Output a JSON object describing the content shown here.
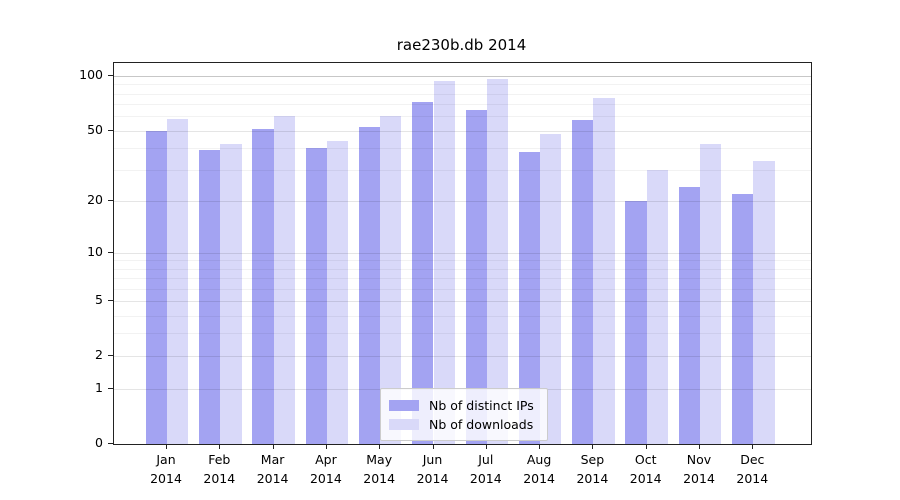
{
  "title": "rae230b.db 2014",
  "colors": {
    "ips_bar": "#a3a3f2",
    "downloads_bar": "#d9d9f9",
    "grid_minor": "rgba(0,0,0,0.05)",
    "grid_major": "rgba(0,0,0,0.10)",
    "grid_top": "rgba(0,0,0,0.22)",
    "axis_frame": "#222222",
    "legend_border": "#cccccc"
  },
  "chart_data": {
    "type": "bar",
    "title": "rae230b.db 2014",
    "categories": [
      "Jan 2014",
      "Feb 2014",
      "Mar 2014",
      "Apr 2014",
      "May 2014",
      "Jun 2014",
      "Jul 2014",
      "Aug 2014",
      "Sep 2014",
      "Oct 2014",
      "Nov 2014",
      "Dec 2014"
    ],
    "series": [
      {
        "name": "Nb of distinct IPs",
        "values": [
          50,
          39,
          51,
          40,
          52,
          72,
          65,
          38,
          57,
          20,
          24,
          22
        ]
      },
      {
        "name": "Nb of downloads",
        "values": [
          58,
          42,
          60,
          44,
          60,
          94,
          96,
          48,
          76,
          30,
          42,
          34
        ]
      }
    ],
    "xlabel": "",
    "ylabel": "",
    "yscale": "log1p",
    "yticks": [
      0,
      1,
      2,
      5,
      10,
      20,
      50,
      100
    ],
    "yticks_minor": [
      3,
      4,
      6,
      7,
      8,
      9,
      30,
      40,
      60,
      70,
      80,
      90
    ],
    "ylim": [
      0,
      118
    ],
    "grid": true,
    "legend_position": "lower center"
  },
  "legend": {
    "items": [
      {
        "label": "Nb of distinct IPs"
      },
      {
        "label": "Nb of downloads"
      }
    ]
  }
}
